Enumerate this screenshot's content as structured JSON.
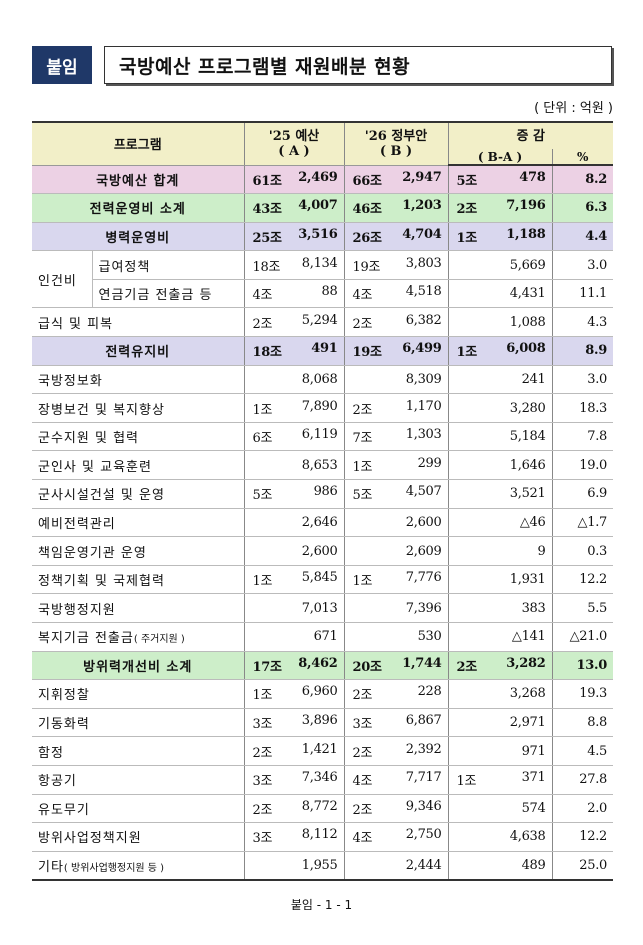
{
  "title": {
    "badge": "붙임",
    "text": "국방예산 프로그램별 재원배분 현황"
  },
  "unit": "( 단위 : 억원 )",
  "headers": {
    "program": "프로그램",
    "col_a_line1": "'25 예산",
    "col_a_line2": "( A )",
    "col_b_line1": "'26 정부안",
    "col_b_line2": "( B )",
    "col_diff_line1": "증 감",
    "col_diff_line2": "( B-A )",
    "col_pct": "%"
  },
  "rows": {
    "total": {
      "name": "국방예산 합계",
      "a_jo": "61조",
      "a_rest": "2,469",
      "b_jo": "66조",
      "b_rest": "2,947",
      "d_jo": "5조",
      "d_rest": "478",
      "pct": "8.2"
    },
    "ops": {
      "name": "전력운영비 소계",
      "a_jo": "43조",
      "a_rest": "4,007",
      "b_jo": "46조",
      "b_rest": "1,203",
      "d_jo": "2조",
      "d_rest": "7,196",
      "pct": "6.3"
    },
    "troop": {
      "name": "병력운영비",
      "a_jo": "25조",
      "a_rest": "3,516",
      "b_jo": "26조",
      "b_rest": "4,704",
      "d_jo": "1조",
      "d_rest": "1,188",
      "pct": "4.4"
    },
    "personnel_label": "인건비",
    "salary": {
      "name": "급여정책",
      "a_jo": "18조",
      "a_rest": "8,134",
      "b_jo": "19조",
      "b_rest": "3,803",
      "d_jo": "",
      "d_rest": "5,669",
      "pct": "3.0"
    },
    "pension": {
      "name": "연금기금 전출금 등",
      "a_jo": "4조",
      "a_rest": "88",
      "b_jo": "4조",
      "b_rest": "4,518",
      "d_jo": "",
      "d_rest": "4,431",
      "pct": "11.1"
    },
    "meals": {
      "name": "급식 및 피복",
      "a_jo": "2조",
      "a_rest": "5,294",
      "b_jo": "2조",
      "b_rest": "6,382",
      "d_jo": "",
      "d_rest": "1,088",
      "pct": "4.3"
    },
    "maint": {
      "name": "전력유지비",
      "a_jo": "18조",
      "a_rest": "491",
      "b_jo": "19조",
      "b_rest": "6,499",
      "d_jo": "1조",
      "d_rest": "6,008",
      "pct": "8.9"
    },
    "items1": [
      {
        "name": "국방정보화",
        "a_jo": "",
        "a_rest": "8,068",
        "b_jo": "",
        "b_rest": "8,309",
        "d_jo": "",
        "d_rest": "241",
        "pct": "3.0"
      },
      {
        "name": "장병보건 및 복지향상",
        "a_jo": "1조",
        "a_rest": "7,890",
        "b_jo": "2조",
        "b_rest": "1,170",
        "d_jo": "",
        "d_rest": "3,280",
        "pct": "18.3"
      },
      {
        "name": "군수지원 및 협력",
        "a_jo": "6조",
        "a_rest": "6,119",
        "b_jo": "7조",
        "b_rest": "1,303",
        "d_jo": "",
        "d_rest": "5,184",
        "pct": "7.8"
      },
      {
        "name": "군인사 및 교육훈련",
        "a_jo": "",
        "a_rest": "8,653",
        "b_jo": "1조",
        "b_rest": "299",
        "d_jo": "",
        "d_rest": "1,646",
        "pct": "19.0"
      },
      {
        "name": "군사시설건설 및 운영",
        "a_jo": "5조",
        "a_rest": "986",
        "b_jo": "5조",
        "b_rest": "4,507",
        "d_jo": "",
        "d_rest": "3,521",
        "pct": "6.9"
      },
      {
        "name": "예비전력관리",
        "a_jo": "",
        "a_rest": "2,646",
        "b_jo": "",
        "b_rest": "2,600",
        "d_jo": "",
        "d_rest": "△46",
        "pct": "△1.7"
      },
      {
        "name": "책임운영기관 운영",
        "a_jo": "",
        "a_rest": "2,600",
        "b_jo": "",
        "b_rest": "2,609",
        "d_jo": "",
        "d_rest": "9",
        "pct": "0.3"
      },
      {
        "name": "정책기획 및 국제협력",
        "a_jo": "1조",
        "a_rest": "5,845",
        "b_jo": "1조",
        "b_rest": "7,776",
        "d_jo": "",
        "d_rest": "1,931",
        "pct": "12.2"
      },
      {
        "name": "국방행정지원",
        "a_jo": "",
        "a_rest": "7,013",
        "b_jo": "",
        "b_rest": "7,396",
        "d_jo": "",
        "d_rest": "383",
        "pct": "5.5"
      },
      {
        "name": "복지기금 전출금",
        "name_small": "( 주거지원 )",
        "a_jo": "",
        "a_rest": "671",
        "b_jo": "",
        "b_rest": "530",
        "d_jo": "",
        "d_rest": "△141",
        "pct": "△21.0"
      }
    ],
    "force": {
      "name": "방위력개선비 소계",
      "a_jo": "17조",
      "a_rest": "8,462",
      "b_jo": "20조",
      "b_rest": "1,744",
      "d_jo": "2조",
      "d_rest": "3,282",
      "pct": "13.0"
    },
    "items2": [
      {
        "name": "지휘정찰",
        "a_jo": "1조",
        "a_rest": "6,960",
        "b_jo": "2조",
        "b_rest": "228",
        "d_jo": "",
        "d_rest": "3,268",
        "pct": "19.3"
      },
      {
        "name": "기동화력",
        "a_jo": "3조",
        "a_rest": "3,896",
        "b_jo": "3조",
        "b_rest": "6,867",
        "d_jo": "",
        "d_rest": "2,971",
        "pct": "8.8"
      },
      {
        "name": "함정",
        "a_jo": "2조",
        "a_rest": "1,421",
        "b_jo": "2조",
        "b_rest": "2,392",
        "d_jo": "",
        "d_rest": "971",
        "pct": "4.5"
      },
      {
        "name": "항공기",
        "a_jo": "3조",
        "a_rest": "7,346",
        "b_jo": "4조",
        "b_rest": "7,717",
        "d_jo": "1조",
        "d_rest": "371",
        "pct": "27.8"
      },
      {
        "name": "유도무기",
        "a_jo": "2조",
        "a_rest": "8,772",
        "b_jo": "2조",
        "b_rest": "9,346",
        "d_jo": "",
        "d_rest": "574",
        "pct": "2.0"
      },
      {
        "name": "방위사업정책지원",
        "a_jo": "3조",
        "a_rest": "8,112",
        "b_jo": "4조",
        "b_rest": "2,750",
        "d_jo": "",
        "d_rest": "4,638",
        "pct": "12.2"
      },
      {
        "name": "기타",
        "name_small": "( 방위사업행정지원 등 )",
        "a_jo": "",
        "a_rest": "1,955",
        "b_jo": "",
        "b_rest": "2,444",
        "d_jo": "",
        "d_rest": "489",
        "pct": "25.0"
      }
    ]
  },
  "footer": "붙임 - 1 - 1"
}
